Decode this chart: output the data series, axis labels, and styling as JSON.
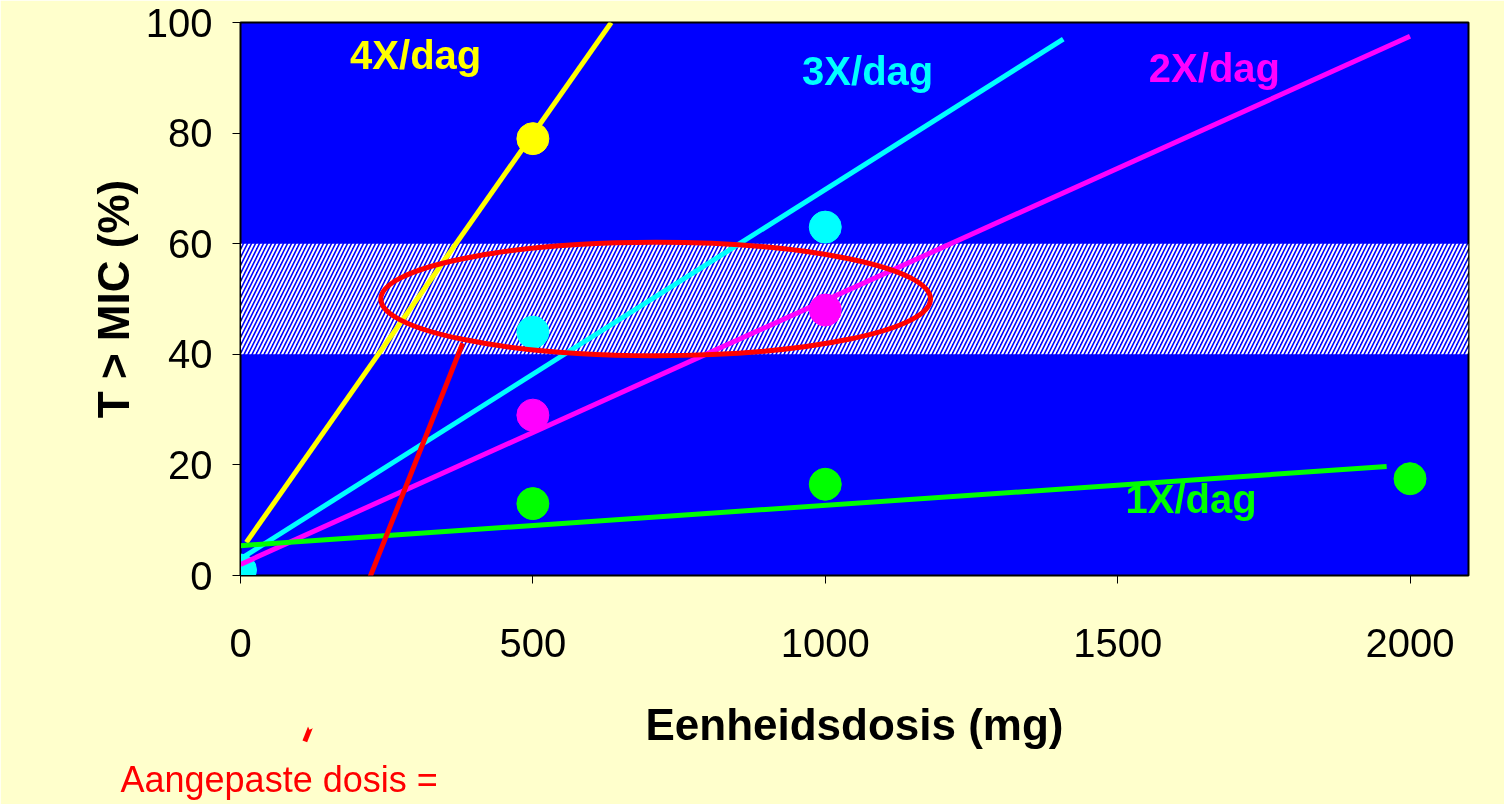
{
  "chart_data": {
    "type": "scatter",
    "xlabel": "Eenheidsdosis (mg)",
    "ylabel": "T > MIC (%)",
    "xlim": [
      0,
      2100
    ],
    "ylim": [
      0,
      100
    ],
    "xticks": [
      0,
      500,
      1000,
      1500,
      2000
    ],
    "yticks": [
      0,
      20,
      40,
      60,
      80,
      100
    ],
    "grid": false,
    "series": [
      {
        "color": "#ffff00",
        "marker": "circle",
        "x": [
          500
        ],
        "values": [
          79
        ]
      },
      {
        "color": "#ff00ff",
        "marker": "circle",
        "x": [
          500,
          1000
        ],
        "values": [
          29,
          48
        ]
      },
      {
        "color": "#00ff00",
        "marker": "circle",
        "x": [
          500,
          1000,
          2000
        ],
        "values": [
          13,
          16.5,
          17.5
        ]
      },
      {
        "color": "#00ffff",
        "marker": "circle",
        "x": [
          0,
          500,
          1000
        ],
        "values": [
          1,
          44,
          63
        ]
      },
      {
        "type": "line",
        "name": "4X/dag",
        "color": "#ffff00",
        "x": [
          10,
          634
        ],
        "values": [
          6,
          100
        ]
      },
      {
        "type": "line",
        "name": "3X/dag",
        "color": "#00ffff",
        "x": [
          0,
          1407
        ],
        "values": [
          3,
          97
        ]
      },
      {
        "type": "line",
        "name": "2X/dag",
        "color": "#ff00ff",
        "x": [
          0,
          2000
        ],
        "values": [
          2,
          97.5
        ]
      },
      {
        "type": "line",
        "name": "1X/dag",
        "color": "#00ff00",
        "x": [
          0,
          1960
        ],
        "values": [
          5.4,
          19.7
        ]
      }
    ],
    "bands": [
      {
        "axis": "y",
        "from": 40,
        "to": 60,
        "color": "#ffffff"
      }
    ],
    "annotations": [
      "Aangepaste dosis ="
    ]
  }
}
